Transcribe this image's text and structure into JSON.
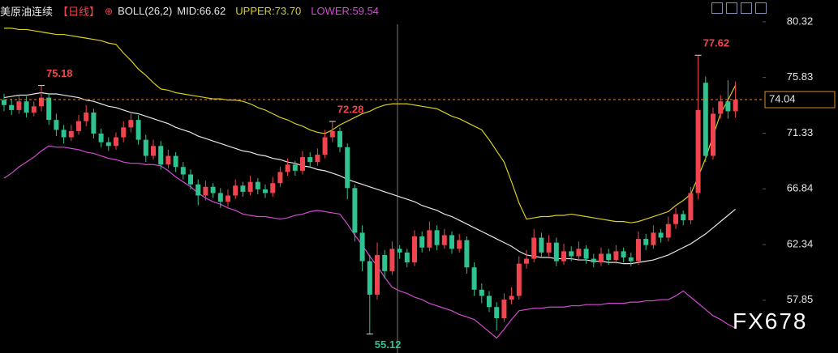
{
  "chart_data": {
    "type": "candlestick",
    "title": "美原油连续",
    "period": "【日线】",
    "indicator": "BOLL(26,2)",
    "indicator_values": [
      {
        "text": "MID:66.62",
        "color": "#e6e6e6"
      },
      {
        "text": "UPPER:73.70",
        "color": "#d9cf1c"
      },
      {
        "text": "LOWER:59.54",
        "color": "#d24bd2"
      }
    ],
    "watermark": "FX678",
    "up_color": "#f0444e",
    "down_color": "#30c392",
    "ylim": [
      53.59,
      82.08
    ],
    "yticks": [
      80.32,
      75.83,
      71.33,
      66.84,
      62.34,
      57.85
    ],
    "grid": false,
    "open": [
      74.0,
      73.6,
      73.2,
      73.9,
      73.0,
      73.5,
      74.2,
      72.4,
      71.6,
      71.0,
      71.5,
      72.3,
      73.0,
      71.3,
      70.6,
      70.3,
      71.0,
      71.8,
      72.4,
      70.8,
      69.5,
      70.3,
      68.8,
      69.5,
      68.6,
      68.0,
      67.2,
      66.3,
      67.0,
      66.5,
      65.8,
      66.3,
      67.1,
      66.6,
      67.4,
      66.8,
      66.5,
      67.3,
      68.2,
      68.8,
      68.3,
      69.4,
      69.0,
      69.6,
      71.0,
      71.5,
      70.2,
      66.9,
      63.3,
      61.0,
      58.3,
      61.5,
      60.2,
      62.0,
      61.7,
      60.9,
      63.0,
      62.1,
      63.5,
      62.3,
      63.1,
      62.0,
      62.7,
      60.5,
      58.7,
      58.2,
      57.3,
      56.4,
      57.9,
      58.2,
      60.8,
      61.2,
      62.9,
      61.7,
      62.5,
      61.0,
      61.8,
      61.4,
      62.0,
      61.2,
      60.9,
      61.6,
      61.1,
      61.8,
      61.3,
      61.0,
      62.8,
      62.3,
      63.3,
      62.9,
      64.0,
      64.8,
      64.3,
      66.5,
      75.4,
      69.5,
      72.9,
      73.9,
      73.1
    ],
    "high": [
      74.5,
      74.1,
      74.4,
      74.3,
      73.9,
      75.18,
      74.5,
      72.9,
      72.0,
      72.0,
      72.8,
      73.6,
      73.3,
      71.7,
      71.0,
      71.4,
      72.3,
      72.9,
      72.8,
      71.2,
      70.8,
      70.7,
      70.0,
      69.8,
      69.0,
      68.4,
      67.6,
      67.5,
      67.3,
      66.9,
      66.8,
      67.6,
      67.4,
      67.9,
      67.7,
      67.2,
      67.8,
      68.6,
      69.3,
      69.1,
      69.9,
      69.8,
      70.1,
      71.6,
      72.28,
      71.8,
      70.5,
      67.2,
      63.9,
      61.5,
      62.5,
      61.9,
      62.6,
      62.3,
      62.0,
      63.5,
      63.4,
      64.2,
      63.9,
      63.6,
      63.4,
      63.2,
      63.0,
      60.9,
      59.2,
      58.6,
      57.7,
      58.4,
      58.9,
      61.4,
      61.9,
      63.6,
      63.3,
      63.1,
      62.9,
      62.4,
      62.2,
      62.6,
      62.3,
      61.6,
      62.1,
      62.0,
      62.3,
      62.1,
      61.7,
      63.4,
      63.2,
      63.9,
      63.6,
      64.6,
      65.3,
      65.1,
      67.0,
      77.62,
      75.9,
      73.4,
      74.4,
      75.6,
      75.5
    ],
    "low": [
      73.1,
      72.8,
      72.9,
      72.6,
      72.7,
      73.1,
      72.0,
      71.1,
      70.5,
      70.7,
      71.2,
      71.9,
      70.9,
      70.2,
      69.9,
      70.0,
      70.6,
      71.4,
      70.4,
      69.0,
      69.2,
      68.4,
      68.5,
      68.2,
      67.6,
      66.8,
      65.5,
      65.9,
      66.1,
      65.3,
      65.4,
      66.0,
      66.2,
      66.3,
      66.4,
      66.1,
      66.2,
      67.0,
      67.9,
      67.9,
      68.0,
      68.6,
      68.7,
      69.3,
      70.6,
      69.8,
      66.0,
      62.6,
      60.2,
      55.12,
      57.9,
      59.6,
      59.9,
      61.2,
      60.5,
      60.6,
      61.7,
      61.8,
      61.9,
      62.0,
      61.6,
      61.7,
      60.0,
      58.2,
      57.6,
      56.9,
      55.4,
      56.1,
      57.5,
      57.9,
      60.4,
      60.9,
      61.3,
      61.4,
      60.6,
      60.7,
      61.0,
      61.1,
      60.8,
      60.5,
      60.6,
      60.7,
      60.8,
      60.9,
      60.6,
      60.7,
      61.9,
      62.0,
      62.5,
      62.6,
      63.6,
      63.9,
      64.0,
      66.0,
      69.0,
      69.2,
      72.5,
      72.5,
      72.6
    ],
    "close": [
      73.6,
      73.2,
      73.9,
      73.0,
      73.5,
      74.2,
      72.4,
      71.6,
      71.0,
      71.5,
      72.3,
      73.0,
      71.3,
      70.6,
      70.3,
      71.0,
      71.8,
      72.4,
      70.8,
      69.5,
      70.3,
      68.8,
      69.5,
      68.6,
      68.0,
      67.2,
      66.3,
      67.0,
      66.5,
      65.8,
      66.3,
      67.1,
      66.6,
      67.4,
      66.8,
      66.5,
      67.3,
      68.2,
      68.8,
      68.3,
      69.4,
      69.0,
      69.6,
      71.0,
      71.5,
      70.2,
      66.9,
      63.3,
      61.0,
      58.3,
      61.5,
      60.2,
      62.0,
      61.7,
      60.9,
      63.0,
      62.1,
      63.5,
      62.3,
      63.1,
      62.0,
      62.7,
      60.5,
      58.7,
      58.2,
      57.3,
      56.4,
      57.9,
      58.2,
      60.8,
      61.2,
      62.9,
      61.7,
      62.5,
      61.0,
      61.8,
      61.4,
      62.0,
      61.2,
      60.9,
      61.6,
      61.1,
      61.8,
      61.3,
      61.0,
      62.8,
      62.3,
      63.3,
      62.9,
      64.0,
      64.8,
      64.3,
      66.5,
      73.2,
      69.5,
      72.9,
      73.9,
      73.1,
      74.04
    ],
    "series": [
      {
        "color": "#d9cf1c",
        "values": [
          79.8,
          79.8,
          79.7,
          79.7,
          79.6,
          79.5,
          79.4,
          79.3,
          79.3,
          79.2,
          79.1,
          79.0,
          78.9,
          78.8,
          78.6,
          78.5,
          77.8,
          77.2,
          76.5,
          76.0,
          75.4,
          74.9,
          74.8,
          74.6,
          74.5,
          74.4,
          74.3,
          74.2,
          74.1,
          74.1,
          74.0,
          74.0,
          73.9,
          73.7,
          73.4,
          73.2,
          72.9,
          72.6,
          72.4,
          72.1,
          71.9,
          71.6,
          71.4,
          71.3,
          71.6,
          72.0,
          72.3,
          72.6,
          72.9,
          73.1,
          73.4,
          73.6,
          73.7,
          73.7,
          73.7,
          73.6,
          73.5,
          73.4,
          73.3,
          73.0,
          72.7,
          72.5,
          72.2,
          71.9,
          71.6,
          70.8,
          69.9,
          69.0,
          67.4,
          65.7,
          64.4,
          64.5,
          64.6,
          64.6,
          64.7,
          64.7,
          64.8,
          64.7,
          64.6,
          64.5,
          64.4,
          64.3,
          64.2,
          64.2,
          64.1,
          64.2,
          64.4,
          64.6,
          64.8,
          65.0,
          65.5,
          65.9,
          66.4,
          67.8,
          69.3,
          71.1,
          72.9,
          74.0,
          75.2
        ]
      },
      {
        "color": "#e6e6e6",
        "values": [
          74.2,
          74.3,
          74.4,
          74.4,
          74.5,
          74.6,
          74.5,
          74.5,
          74.4,
          74.3,
          74.2,
          74.0,
          73.9,
          73.7,
          73.5,
          73.4,
          73.2,
          73.0,
          72.9,
          72.7,
          72.5,
          72.3,
          72.1,
          71.8,
          71.6,
          71.4,
          71.1,
          70.9,
          70.7,
          70.5,
          70.3,
          70.1,
          69.9,
          69.8,
          69.6,
          69.5,
          69.3,
          69.2,
          69.0,
          68.9,
          68.7,
          68.6,
          68.4,
          68.3,
          68.1,
          67.9,
          67.6,
          67.4,
          67.2,
          67.0,
          66.8,
          66.6,
          66.4,
          66.2,
          66.0,
          65.8,
          65.5,
          65.3,
          65.1,
          64.8,
          64.6,
          64.3,
          64.0,
          63.7,
          63.4,
          63.1,
          62.8,
          62.5,
          62.2,
          61.8,
          61.5,
          61.4,
          61.3,
          61.3,
          61.2,
          61.2,
          61.2,
          61.1,
          61.1,
          61.0,
          61.0,
          60.9,
          60.9,
          60.8,
          60.8,
          60.9,
          61.0,
          61.1,
          61.3,
          61.5,
          61.8,
          62.1,
          62.4,
          62.8,
          63.2,
          63.7,
          64.2,
          64.7,
          65.2
        ]
      },
      {
        "color": "#d24bd2",
        "values": [
          67.7,
          68.1,
          68.6,
          69.0,
          69.4,
          69.9,
          70.3,
          70.2,
          70.2,
          70.1,
          70.0,
          69.8,
          69.7,
          69.5,
          69.3,
          69.2,
          69.0,
          68.9,
          68.9,
          68.8,
          68.8,
          68.7,
          68.3,
          67.8,
          67.4,
          67.0,
          66.5,
          66.1,
          65.8,
          65.6,
          65.3,
          65.1,
          64.8,
          64.7,
          64.6,
          64.6,
          64.5,
          64.4,
          64.5,
          64.7,
          64.8,
          65.0,
          65.1,
          65.0,
          64.9,
          64.8,
          64.0,
          63.1,
          62.3,
          61.4,
          60.6,
          59.7,
          58.9,
          58.6,
          58.4,
          58.1,
          57.9,
          57.6,
          57.4,
          57.2,
          57.0,
          56.7,
          56.5,
          56.3,
          55.8,
          55.3,
          54.8,
          55.5,
          56.3,
          57.0,
          57.1,
          57.2,
          57.2,
          57.3,
          57.3,
          57.3,
          57.4,
          57.4,
          57.5,
          57.5,
          57.5,
          57.6,
          57.6,
          57.6,
          57.7,
          57.7,
          57.8,
          57.8,
          57.9,
          57.9,
          58.2,
          58.6,
          58.1,
          57.6,
          57.1,
          56.6,
          56.3,
          55.9,
          55.6
        ]
      }
    ]
  }
}
